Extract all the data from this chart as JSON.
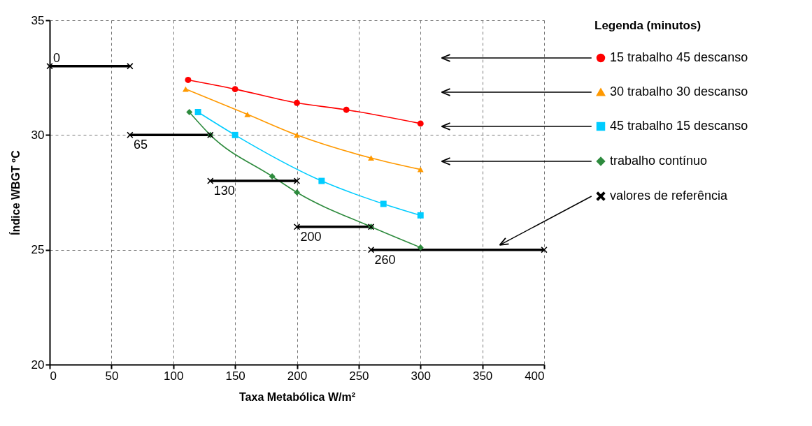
{
  "chart_data": {
    "type": "line",
    "xlabel": "Taxa Metabólica W/m²",
    "ylabel": "Índice WBGT ºC",
    "legend_title": "Legenda (minutos)",
    "xlim": [
      0,
      400
    ],
    "xticks": [
      0,
      50,
      100,
      150,
      200,
      250,
      300,
      350,
      400
    ],
    "ylim": [
      20,
      35
    ],
    "yticks": [
      20,
      25,
      30,
      35
    ],
    "grid": true,
    "legend": "right",
    "series": [
      {
        "name": "15 trabalho 45 descanso",
        "color": "#ff0000",
        "marker": "circle",
        "x": [
          112,
          150,
          200,
          240,
          300
        ],
        "values": [
          32.4,
          32.0,
          31.4,
          31.1,
          30.5
        ]
      },
      {
        "name": "30 trabalho 30 descanso",
        "color": "#ff9900",
        "marker": "triangle",
        "x": [
          110,
          160,
          200,
          260,
          300
        ],
        "values": [
          32.0,
          30.9,
          30.0,
          29.0,
          28.5
        ]
      },
      {
        "name": "45 trabalho 15 descanso",
        "color": "#00ccff",
        "marker": "square",
        "x": [
          120,
          150,
          220,
          270,
          300
        ],
        "values": [
          31.0,
          30.0,
          28.0,
          27.0,
          26.5
        ]
      },
      {
        "name": "trabalho contínuo",
        "color": "#2e8b3e",
        "marker": "diamond",
        "x": [
          113,
          130,
          180,
          200,
          260,
          300
        ],
        "values": [
          31.0,
          30.0,
          28.2,
          27.5,
          26.0,
          25.1
        ]
      },
      {
        "name": "valores de referência",
        "color": "#000000",
        "marker": "cross",
        "x": [
          0,
          65,
          null,
          65,
          130,
          null,
          130,
          200,
          null,
          200,
          260,
          null,
          260,
          400
        ],
        "values": [
          33,
          33,
          null,
          30,
          30,
          null,
          28,
          28,
          null,
          26,
          26,
          null,
          25,
          25
        ]
      }
    ],
    "annotations": [
      {
        "text": "0",
        "x": 0,
        "y": 33
      },
      {
        "text": "65",
        "x": 65,
        "y": 30
      },
      {
        "text": "130",
        "x": 130,
        "y": 28
      },
      {
        "text": "200",
        "x": 200,
        "y": 26
      },
      {
        "text": "260",
        "x": 260,
        "y": 25
      }
    ]
  }
}
